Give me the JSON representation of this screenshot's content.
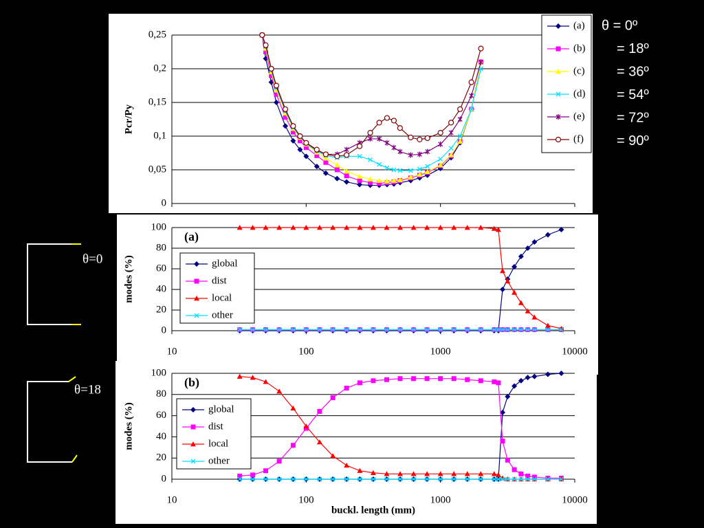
{
  "sketches": [
    "θ=0",
    "θ=18"
  ],
  "chart_data": [
    {
      "type": "line",
      "ylabel": "Pcr/Py",
      "xscale": "log",
      "xlim": [
        10,
        10000
      ],
      "xticks": [
        10,
        100,
        1000,
        10000
      ],
      "show_xtick_labels": false,
      "ylim": [
        0,
        0.25
      ],
      "yticks": [
        0,
        {
          "value": 0.05,
          "label": "0,05"
        },
        {
          "value": 0.1,
          "label": "0,1"
        },
        {
          "value": 0.15,
          "label": "0,15"
        },
        {
          "value": 0.2,
          "label": "0,2"
        },
        {
          "value": 0.25,
          "label": "0,25"
        }
      ],
      "grid": true,
      "legend": "upper right",
      "annotations": [
        "θ = 0º",
        "= 18º",
        "= 36º",
        "= 54º",
        "= 72º",
        "= 90º"
      ],
      "x": [
        47,
        50,
        55,
        60,
        70,
        80,
        90,
        100,
        120,
        140,
        170,
        200,
        250,
        300,
        350,
        400,
        450,
        500,
        600,
        700,
        800,
        1000,
        1200,
        1400,
        1700,
        2000
      ],
      "series": [
        {
          "name": "(a)",
          "color": "#000080",
          "marker": "diamond",
          "values": [
            0.25,
            0.215,
            0.18,
            0.15,
            0.115,
            0.093,
            0.08,
            0.07,
            0.055,
            0.045,
            0.037,
            0.032,
            0.028,
            0.027,
            0.027,
            0.028,
            0.029,
            0.031,
            0.034,
            0.038,
            0.042,
            0.052,
            0.068,
            0.09,
            0.14,
            0.21
          ]
        },
        {
          "name": "(b)",
          "color": "#ff00ff",
          "marker": "square",
          "values": [
            0.25,
            0.225,
            0.19,
            0.162,
            0.128,
            0.106,
            0.093,
            0.083,
            0.071,
            0.061,
            0.05,
            0.041,
            0.034,
            0.031,
            0.03,
            0.031,
            0.032,
            0.034,
            0.038,
            0.042,
            0.046,
            0.056,
            0.071,
            0.092,
            0.14,
            0.21
          ]
        },
        {
          "name": "(c)",
          "color": "#ffff00",
          "marker": "triangle",
          "values": [
            0.25,
            0.23,
            0.195,
            0.168,
            0.134,
            0.111,
            0.098,
            0.088,
            0.076,
            0.067,
            0.057,
            0.048,
            0.04,
            0.036,
            0.034,
            0.033,
            0.034,
            0.035,
            0.039,
            0.043,
            0.047,
            0.057,
            0.072,
            0.092,
            0.14,
            0.21
          ]
        },
        {
          "name": "(d)",
          "color": "#00e0ff",
          "marker": "x",
          "values": [
            0.25,
            0.233,
            0.198,
            0.172,
            0.137,
            0.113,
            0.099,
            0.089,
            0.078,
            0.071,
            0.068,
            0.07,
            0.07,
            0.065,
            0.058,
            0.053,
            0.05,
            0.049,
            0.049,
            0.051,
            0.055,
            0.066,
            0.082,
            0.1,
            0.14,
            0.2
          ]
        },
        {
          "name": "(e)",
          "color": "#800080",
          "marker": "star",
          "values": [
            0.25,
            0.234,
            0.2,
            0.174,
            0.139,
            0.115,
            0.1,
            0.09,
            0.079,
            0.073,
            0.073,
            0.08,
            0.09,
            0.096,
            0.096,
            0.09,
            0.083,
            0.077,
            0.072,
            0.073,
            0.077,
            0.088,
            0.105,
            0.125,
            0.16,
            0.21
          ]
        },
        {
          "name": "(f)",
          "color": "#800000",
          "marker": "circle",
          "values": [
            0.25,
            0.235,
            0.2,
            0.175,
            0.14,
            0.115,
            0.1,
            0.09,
            0.08,
            0.073,
            0.07,
            0.072,
            0.085,
            0.105,
            0.12,
            0.127,
            0.123,
            0.112,
            0.098,
            0.095,
            0.097,
            0.105,
            0.12,
            0.14,
            0.18,
            0.23
          ]
        }
      ]
    },
    {
      "type": "line",
      "label": "(a)",
      "ylabel": "modes (%)",
      "xscale": "log",
      "xlim": [
        10,
        10000
      ],
      "xticks": [
        10,
        100,
        1000,
        10000
      ],
      "show_xtick_labels": true,
      "ylim": [
        0,
        100
      ],
      "yticks": [
        0,
        20,
        40,
        60,
        80,
        100
      ],
      "grid": true,
      "legend": "lower left",
      "x": [
        32,
        40,
        50,
        63,
        80,
        100,
        126,
        158,
        200,
        251,
        316,
        398,
        501,
        631,
        794,
        1000,
        1259,
        1585,
        1995,
        2512,
        2700,
        2900,
        3162,
        3548,
        3981,
        4467,
        5012,
        6310,
        7943
      ],
      "series": [
        {
          "name": "global",
          "color": "#000080",
          "marker": "diamond",
          "values": [
            0,
            0,
            0,
            0,
            0,
            0,
            0,
            0,
            0,
            0,
            0,
            0,
            0,
            0,
            0,
            0,
            0,
            0,
            0,
            0,
            0,
            40,
            50,
            62,
            72,
            80,
            86,
            93,
            98
          ]
        },
        {
          "name": "dist",
          "color": "#ff00ff",
          "marker": "square",
          "values": [
            1,
            1,
            1,
            1,
            1,
            1,
            1,
            1,
            1,
            1,
            1,
            1,
            1,
            1,
            1,
            1,
            1,
            1,
            1,
            1,
            1,
            1,
            1,
            1,
            1,
            1,
            1,
            1,
            1
          ]
        },
        {
          "name": "local",
          "color": "#ff0000",
          "marker": "triangle",
          "values": [
            100,
            100,
            100,
            100,
            100,
            100,
            100,
            100,
            100,
            100,
            100,
            100,
            100,
            100,
            100,
            100,
            100,
            100,
            100,
            99,
            98,
            58,
            48,
            37,
            27,
            19,
            13,
            5,
            2
          ]
        },
        {
          "name": "other",
          "color": "#00e0ff",
          "marker": "x",
          "values": [
            1,
            1,
            1,
            1,
            1,
            1,
            1,
            1,
            1,
            1,
            1,
            1,
            1,
            1,
            1,
            1,
            1,
            1,
            1,
            1,
            1,
            1,
            1,
            1,
            1,
            1,
            1,
            1,
            1
          ]
        }
      ]
    },
    {
      "type": "line",
      "label": "(b)",
      "ylabel": "modes (%)",
      "xlabel": "buckl. length (mm)",
      "xscale": "log",
      "xlim": [
        10,
        10000
      ],
      "xticks": [
        10,
        100,
        1000,
        10000
      ],
      "show_xtick_labels": true,
      "ylim": [
        0,
        100
      ],
      "yticks": [
        0,
        20,
        40,
        60,
        80,
        100
      ],
      "grid": true,
      "legend": "lower left",
      "x": [
        32,
        40,
        50,
        63,
        80,
        100,
        126,
        158,
        200,
        251,
        316,
        398,
        501,
        631,
        794,
        1000,
        1259,
        1585,
        1995,
        2512,
        2700,
        2900,
        3162,
        3548,
        3981,
        4467,
        5012,
        6310,
        7943
      ],
      "series": [
        {
          "name": "global",
          "color": "#000080",
          "marker": "diamond",
          "values": [
            0,
            0,
            0,
            0,
            0,
            0,
            0,
            0,
            0,
            0,
            0,
            0,
            0,
            0,
            0,
            0,
            0,
            0,
            0,
            0,
            0,
            63,
            78,
            88,
            93,
            96,
            97,
            99,
            100
          ]
        },
        {
          "name": "dist",
          "color": "#ff00ff",
          "marker": "square",
          "values": [
            3,
            4,
            8,
            17,
            32,
            48,
            64,
            77,
            86,
            91,
            93,
            94,
            95,
            95,
            95,
            95,
            95,
            94,
            93,
            92,
            91,
            36,
            18,
            9,
            5,
            3,
            2,
            1,
            1
          ]
        },
        {
          "name": "local",
          "color": "#ff0000",
          "marker": "triangle",
          "values": [
            97,
            96,
            92,
            83,
            67,
            50,
            35,
            22,
            13,
            8,
            6,
            5,
            5,
            5,
            5,
            5,
            5,
            5,
            5,
            5,
            4,
            1,
            0,
            0,
            0,
            0,
            0,
            0,
            0
          ]
        },
        {
          "name": "other",
          "color": "#00e0ff",
          "marker": "x",
          "values": [
            0,
            0,
            0,
            0,
            0,
            0,
            0,
            0,
            0,
            0,
            0,
            0,
            0,
            0,
            0,
            0,
            0,
            0,
            0,
            0,
            0,
            0,
            0,
            0,
            0,
            0,
            0,
            0,
            0
          ]
        }
      ]
    }
  ]
}
